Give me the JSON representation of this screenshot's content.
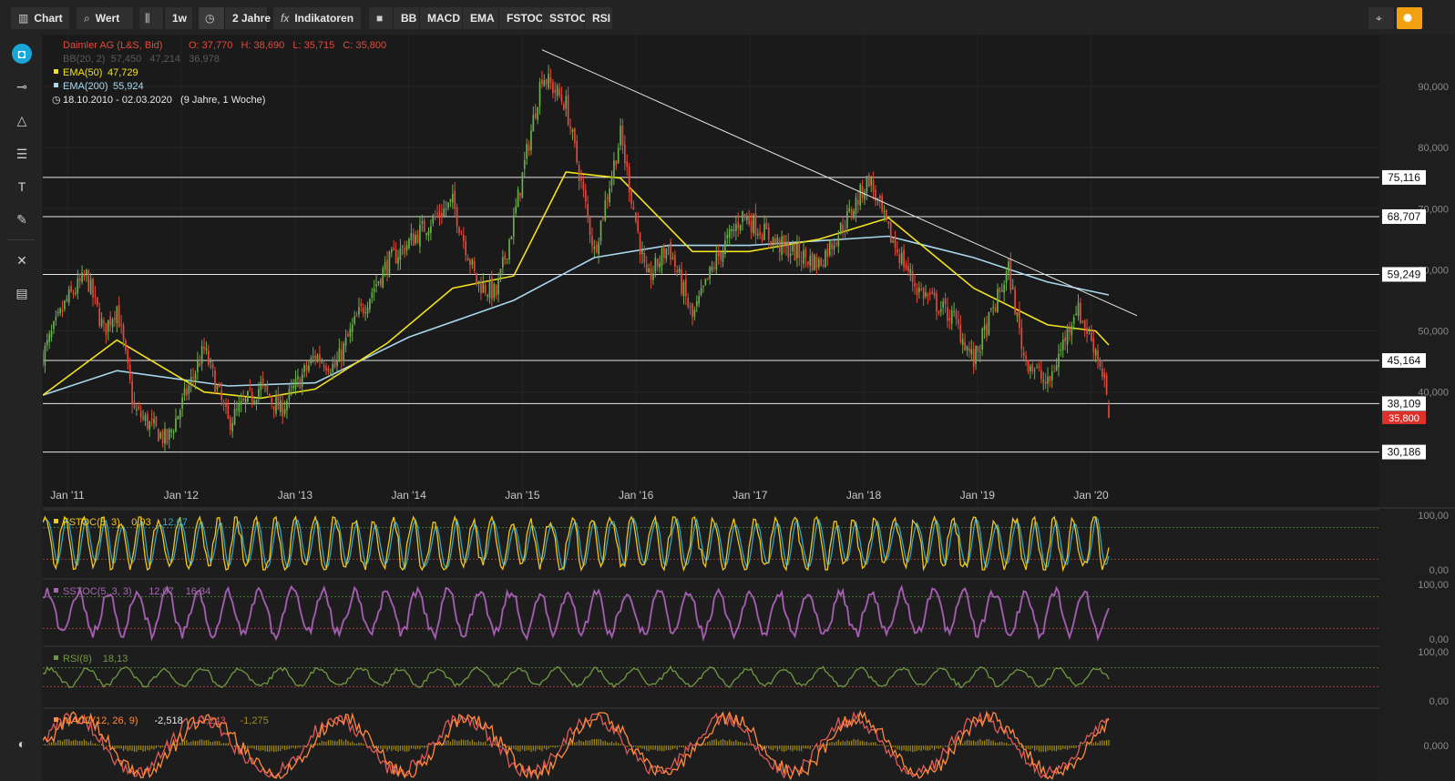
{
  "toolbar": {
    "chart_label": "Chart",
    "value_label": "Wert",
    "interval_label": "1w",
    "range_label": "2 Jahre",
    "indicators_label": "Indikatoren",
    "indicator_buttons": [
      "BB",
      "MACD",
      "EMA",
      "FSTOC",
      "SSTOC",
      "RSI"
    ]
  },
  "legend": {
    "instrument": "Daimler AG (L&S, Bid)",
    "ohlc": "O: 37,770   H: 38,690   L: 35,715   C: 35,800",
    "bb": "BB(20, 2)  57,450   47,214   36,978",
    "ema50": "EMA(50)",
    "ema50_value": "47,729",
    "ema200": "EMA(200)",
    "ema200_value": "55,924",
    "range": "18.10.2010 - 02.03.2020   (9 Jahre, 1 Woche)"
  },
  "colors": {
    "up": "#6ab04c",
    "down": "#e34a3b",
    "ema50": "#f2e21a",
    "ema200": "#a8d8f0",
    "fstoc_k": "#f5c518",
    "fstoc_d": "#2fa6c9",
    "sstoc": "#a865b5",
    "rsi": "#6e9a3f",
    "macd": "#ff8a3d",
    "macd_signal": "#e15b5b",
    "histogram": "#a08a16",
    "last_price": "#e0302a"
  },
  "icons": [
    "chart-bars-icon",
    "search-icon",
    "candlestick-icon",
    "clock-icon",
    "fx-icon",
    "bookmark-icon",
    "crosshair-icon",
    "settings-icon",
    "camera-icon",
    "line-tool-icon",
    "triangle-icon",
    "fib-icon",
    "text-tool-icon",
    "pencil-icon",
    "tools-icon",
    "list-icon",
    "contrast-icon"
  ],
  "chart_data": {
    "type": "candlestick",
    "instrument": "Daimler AG (L&S, Bid)",
    "interval": "1w",
    "date_range": [
      "2010-10-18",
      "2020-03-02"
    ],
    "x_ticks": [
      "Jan '11",
      "Jan '12",
      "Jan '13",
      "Jan '14",
      "Jan '15",
      "Jan '16",
      "Jan '17",
      "Jan '18",
      "Jan '19",
      "Jan '20"
    ],
    "y_ticks": [
      "90,000",
      "80,000",
      "70,000",
      "60,000",
      "50,000",
      "40,000"
    ],
    "ylim": [
      27,
      97
    ],
    "last_ohlc": {
      "open": 37.77,
      "high": 38.69,
      "low": 35.715,
      "close": 35.8
    },
    "last_price_label": "35,800",
    "horizontal_levels": [
      {
        "value": 75.116,
        "label": "75,116"
      },
      {
        "value": 68.707,
        "label": "68,707"
      },
      {
        "value": 59.249,
        "label": "59,249"
      },
      {
        "value": 45.164,
        "label": "45,164"
      },
      {
        "value": 38.109,
        "label": "38,109"
      },
      {
        "value": 30.186,
        "label": "30,186"
      }
    ],
    "trendline": [
      [
        "2015-03-09",
        96.0
      ],
      [
        "2020-06-01",
        52.5
      ]
    ],
    "anchors": [
      [
        "2010-10-18",
        46.0
      ],
      [
        "2011-01-03",
        55.0
      ],
      [
        "2011-03-07",
        59.0
      ],
      [
        "2011-05-02",
        50.0
      ],
      [
        "2011-06-13",
        54.0
      ],
      [
        "2011-08-08",
        37.0
      ],
      [
        "2011-11-21",
        32.0
      ],
      [
        "2012-03-19",
        47.0
      ],
      [
        "2012-06-04",
        35.0
      ],
      [
        "2012-09-17",
        41.0
      ],
      [
        "2012-11-19",
        37.0
      ],
      [
        "2013-03-11",
        46.0
      ],
      [
        "2013-05-13",
        44.0
      ],
      [
        "2013-07-22",
        52.0
      ],
      [
        "2013-10-28",
        61.0
      ],
      [
        "2014-03-17",
        68.0
      ],
      [
        "2014-05-26",
        71.0
      ],
      [
        "2014-08-11",
        58.0
      ],
      [
        "2014-10-13",
        56.0
      ],
      [
        "2014-12-08",
        68.0
      ],
      [
        "2015-03-09",
        92.0
      ],
      [
        "2015-05-25",
        87.0
      ],
      [
        "2015-08-24",
        63.0
      ],
      [
        "2015-11-16",
        82.0
      ],
      [
        "2016-02-08",
        58.0
      ],
      [
        "2016-04-18",
        64.0
      ],
      [
        "2016-07-04",
        52.0
      ],
      [
        "2016-09-12",
        61.0
      ],
      [
        "2016-12-12",
        69.0
      ],
      [
        "2017-04-10",
        64.0
      ],
      [
        "2017-08-14",
        61.0
      ],
      [
        "2017-11-20",
        69.0
      ],
      [
        "2018-01-22",
        75.0
      ],
      [
        "2018-03-26",
        66.0
      ],
      [
        "2018-06-25",
        57.0
      ],
      [
        "2018-10-22",
        52.0
      ],
      [
        "2018-12-24",
        45.0
      ],
      [
        "2019-04-15",
        60.0
      ],
      [
        "2019-06-03",
        46.0
      ],
      [
        "2019-08-19",
        41.0
      ],
      [
        "2019-11-18",
        54.0
      ],
      [
        "2020-01-20",
        47.0
      ],
      [
        "2020-02-17",
        42.0
      ],
      [
        "2020-03-02",
        35.8
      ]
    ],
    "ema50": [
      [
        "2010-10-18",
        39.5
      ],
      [
        "2011-06-13",
        48.5
      ],
      [
        "2012-03-19",
        40.0
      ],
      [
        "2012-09-17",
        39.0
      ],
      [
        "2013-03-11",
        40.5
      ],
      [
        "2013-10-28",
        48.0
      ],
      [
        "2014-05-26",
        57.0
      ],
      [
        "2014-12-08",
        59.0
      ],
      [
        "2015-05-25",
        76.0
      ],
      [
        "2015-11-16",
        75.0
      ],
      [
        "2016-07-04",
        63.0
      ],
      [
        "2017-01-02",
        63.0
      ],
      [
        "2017-08-14",
        65.0
      ],
      [
        "2018-03-26",
        68.5
      ],
      [
        "2018-12-24",
        57.0
      ],
      [
        "2019-08-19",
        51.0
      ],
      [
        "2020-01-20",
        50.0
      ],
      [
        "2020-03-02",
        47.7
      ]
    ],
    "ema200": [
      [
        "2010-10-18",
        39.5
      ],
      [
        "2011-06-13",
        43.5
      ],
      [
        "2012-06-04",
        41.0
      ],
      [
        "2013-03-11",
        41.5
      ],
      [
        "2014-01-06",
        49.0
      ],
      [
        "2014-12-08",
        55.0
      ],
      [
        "2015-08-24",
        62.0
      ],
      [
        "2016-04-18",
        64.0
      ],
      [
        "2017-01-02",
        64.0
      ],
      [
        "2018-03-26",
        65.5
      ],
      [
        "2018-12-24",
        62.0
      ],
      [
        "2019-08-19",
        58.0
      ],
      [
        "2020-03-02",
        55.9
      ]
    ],
    "panels": [
      {
        "name": "FSTOC(5, 3)",
        "values": [
          "0,93",
          "12,07"
        ],
        "ylim": [
          0,
          100
        ],
        "y_ticks": [
          "100,00",
          "0,00"
        ],
        "levels": [
          80,
          20
        ]
      },
      {
        "name": "SSTOC(5, 3, 3)",
        "values": [
          "12,07",
          "16,34"
        ],
        "ylim": [
          0,
          100
        ],
        "y_ticks": [
          "100,00",
          "0,00"
        ],
        "levels": [
          80,
          20
        ]
      },
      {
        "name": "RSI(8)",
        "values": [
          "18,13"
        ],
        "ylim": [
          0,
          100
        ],
        "y_ticks": [
          "100,00",
          "0,00"
        ],
        "levels": [
          70,
          30
        ]
      },
      {
        "name": "MACD(12, 26, 9)",
        "values": [
          "-2,518",
          "-1,243",
          "-1,275"
        ],
        "y_ticks": [
          "0,000"
        ]
      }
    ]
  }
}
